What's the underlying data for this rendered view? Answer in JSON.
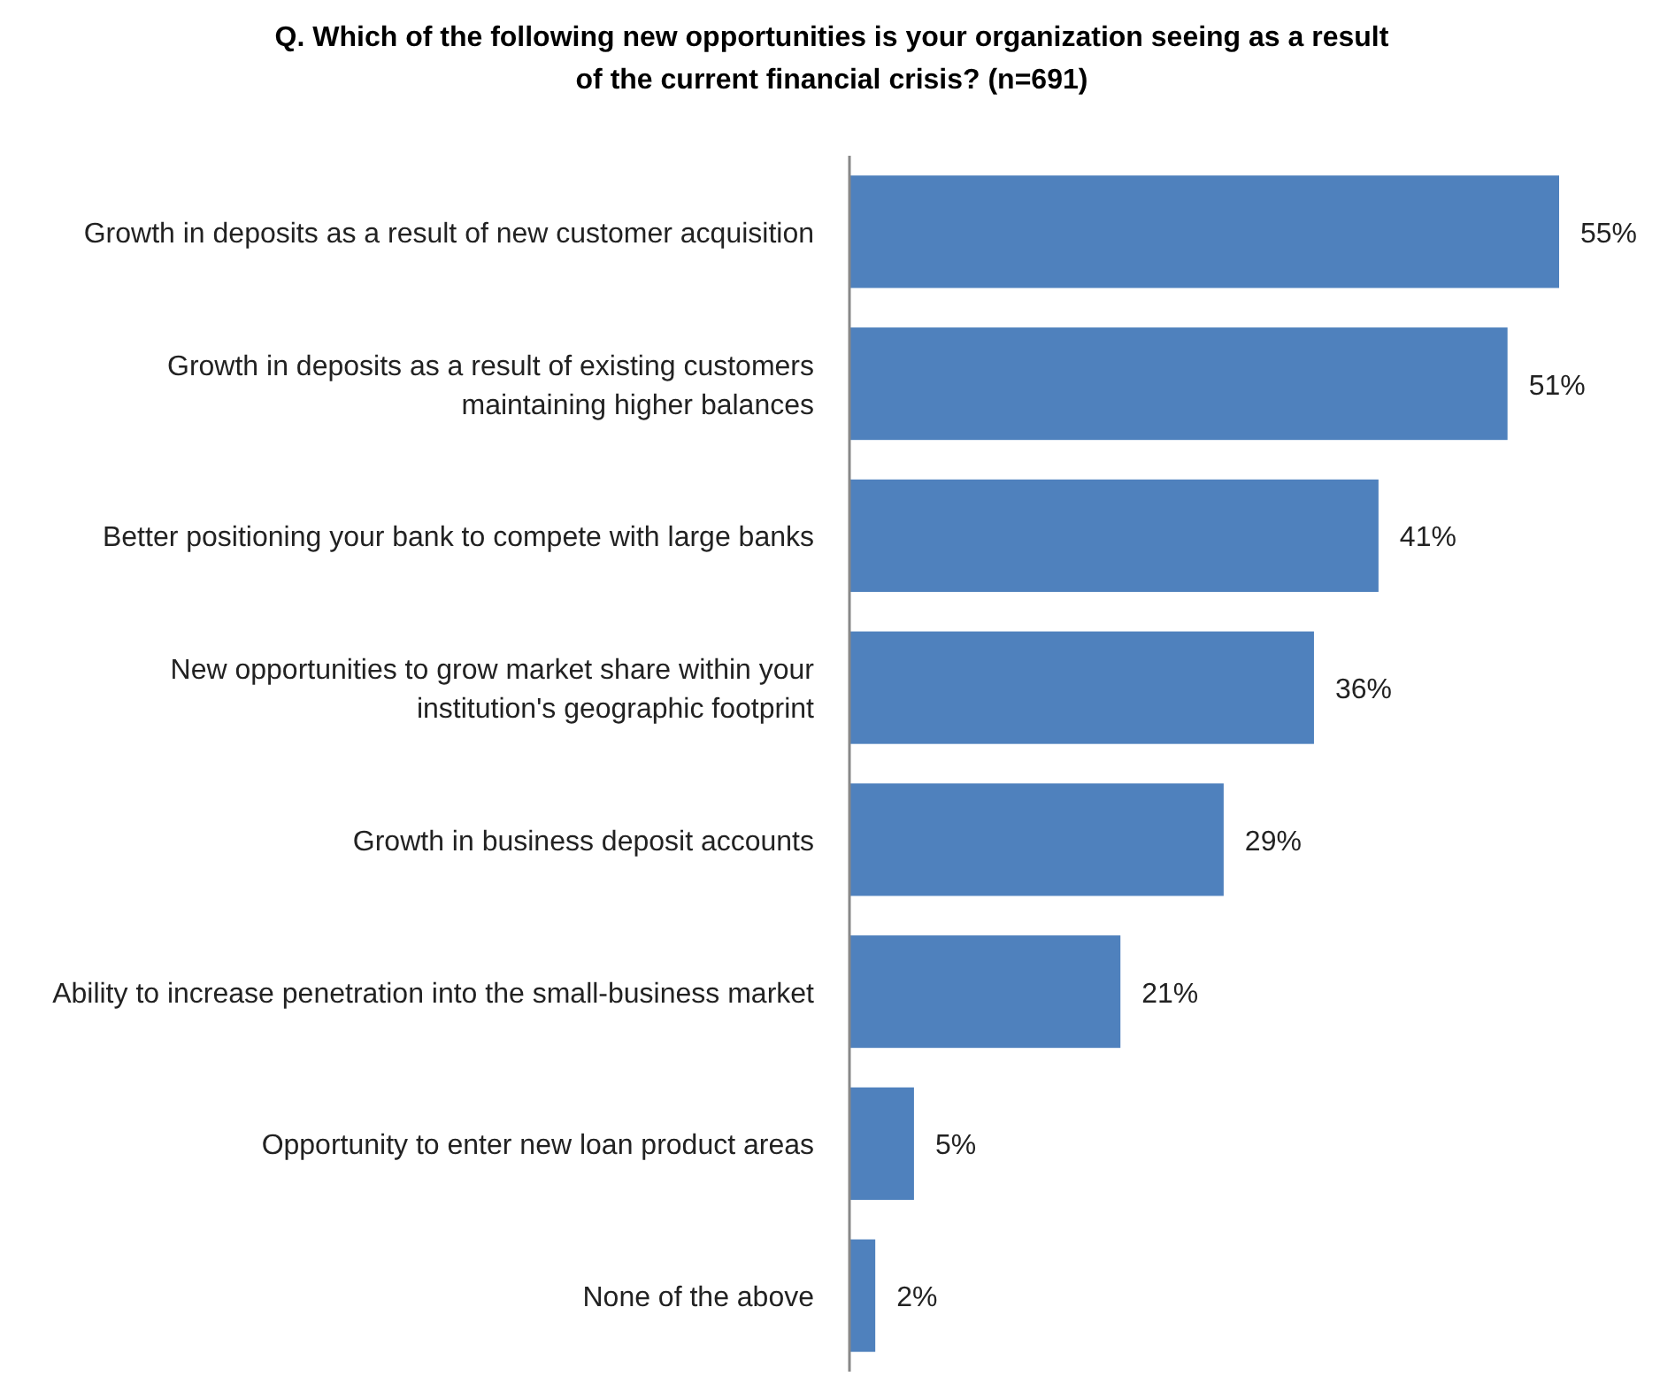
{
  "chart_data": {
    "type": "bar",
    "orientation": "horizontal",
    "title": "Q. Which of the following new opportunities is your organization seeing as a result of the current financial crisis? (n=691)",
    "categories": [
      "Growth in deposits as a result of new customer acquisition",
      "Growth in deposits as a result of existing customers maintaining higher balances",
      "Better positioning your bank to compete with large  banks",
      "New opportunities to grow market share within your institution's geographic footprint",
      "Growth in business deposit accounts",
      "Ability to increase penetration into the small-business market",
      "Opportunity to enter new loan product areas",
      "None of the above"
    ],
    "values": [
      55,
      51,
      41,
      36,
      29,
      21,
      5,
      2
    ],
    "value_labels": [
      "55%",
      "51%",
      "41%",
      "36%",
      "29%",
      "21%",
      "5%",
      "2%"
    ],
    "color": "#4f81bd"
  }
}
